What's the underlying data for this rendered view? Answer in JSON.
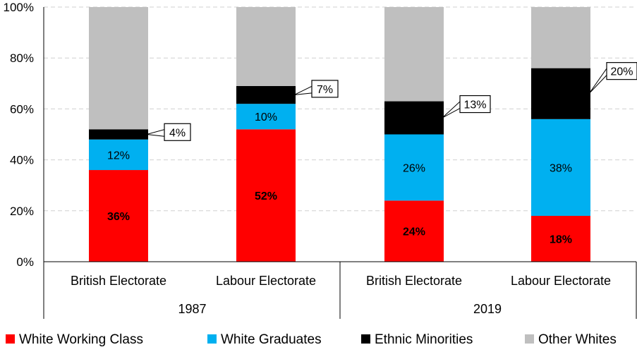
{
  "chart_data": {
    "type": "bar",
    "stacked": true,
    "percent": true,
    "ylim": [
      0,
      100
    ],
    "yticks": [
      "0%",
      "20%",
      "40%",
      "60%",
      "80%",
      "100%"
    ],
    "categories": [
      "British Electorate",
      "Labour Electorate",
      "British Electorate",
      "Labour Electorate"
    ],
    "groups": [
      {
        "label": "1987",
        "start": 0,
        "end": 1
      },
      {
        "label": "2019",
        "start": 2,
        "end": 3
      }
    ],
    "series": [
      {
        "name": "White Working Class",
        "color": "#ff0000",
        "values": [
          36,
          52,
          24,
          18
        ],
        "labels": [
          "36%",
          "52%",
          "24%",
          "18%"
        ],
        "label_bold": true
      },
      {
        "name": "White Graduates",
        "color": "#00b0f0",
        "values": [
          12,
          10,
          26,
          38
        ],
        "labels": [
          "12%",
          "10%",
          "26%",
          "38%"
        ],
        "label_bold": false
      },
      {
        "name": "Ethnic Minorities",
        "color": "#000000",
        "values": [
          4,
          7,
          13,
          20
        ],
        "labels": [
          "4%",
          "7%",
          "13%",
          "20%"
        ],
        "callout": true
      },
      {
        "name": "Other Whites",
        "color": "#bfbfbf",
        "values": [
          48,
          31,
          37,
          24
        ]
      }
    ],
    "grid": true,
    "legend": "bottom"
  }
}
